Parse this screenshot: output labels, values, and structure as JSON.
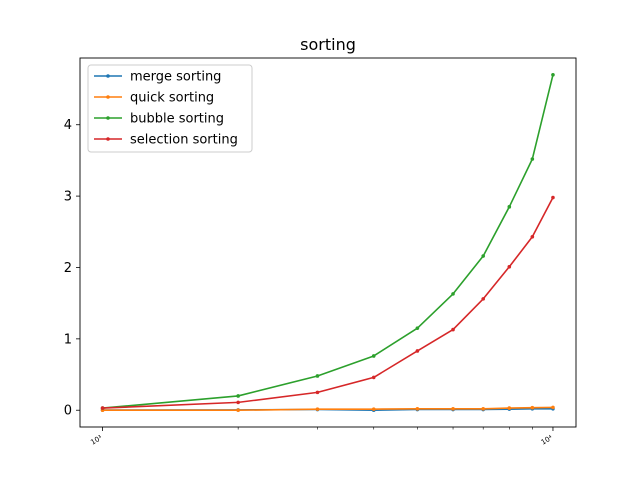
{
  "chart_data": {
    "type": "line",
    "title": "sorting",
    "xlabel": "",
    "ylabel": "",
    "x_scale": "log",
    "xlim": [
      891,
      11250
    ],
    "ylim": [
      -0.235,
      4.935
    ],
    "x_ticks": [
      {
        "value": 1000,
        "label": "10³"
      },
      {
        "value": 10000,
        "label": "10⁴"
      }
    ],
    "x_minor_ticks": [
      2000,
      3000,
      4000,
      5000,
      6000,
      7000,
      8000,
      9000
    ],
    "y_ticks": [
      0,
      1,
      2,
      3,
      4
    ],
    "grid": false,
    "legend_position": "upper-left",
    "x": [
      1000,
      2000,
      3000,
      4000,
      5000,
      6000,
      7000,
      8000,
      9000,
      10000
    ],
    "series": [
      {
        "name": "merge sorting",
        "color": "#1f77b4",
        "values": [
          0.002,
          0.005,
          0.01,
          0.0,
          0.01,
          0.01,
          0.01,
          0.015,
          0.02,
          0.02
        ]
      },
      {
        "name": "quick sorting",
        "color": "#ff7f0e",
        "values": [
          0.0,
          0.0,
          0.015,
          0.015,
          0.02,
          0.02,
          0.02,
          0.03,
          0.035,
          0.04
        ]
      },
      {
        "name": "bubble sorting",
        "color": "#2ca02c",
        "values": [
          0.03,
          0.2,
          0.48,
          0.76,
          1.15,
          1.63,
          2.16,
          2.85,
          3.52,
          4.7
        ]
      },
      {
        "name": "selection sorting",
        "color": "#d62728",
        "values": [
          0.03,
          0.11,
          0.25,
          0.46,
          0.83,
          1.13,
          1.56,
          2.01,
          2.43,
          2.98
        ]
      }
    ]
  }
}
